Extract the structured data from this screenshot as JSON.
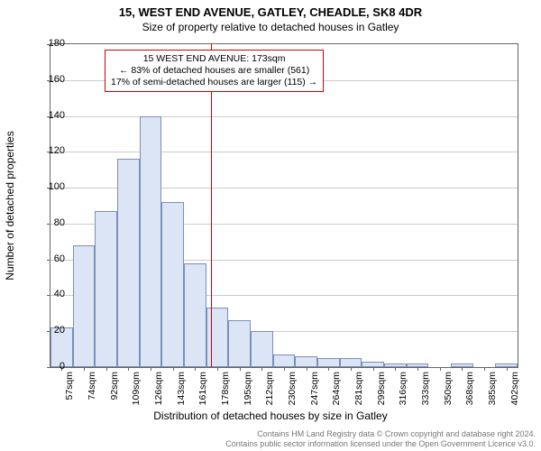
{
  "title": "15, WEST END AVENUE, GATLEY, CHEADLE, SK8 4DR",
  "subtitle": "Size of property relative to detached houses in Gatley",
  "chart": {
    "type": "histogram",
    "ylabel": "Number of detached properties",
    "xlabel": "Distribution of detached houses by size in Gatley",
    "ylim": [
      0,
      180
    ],
    "yticks": [
      0,
      20,
      40,
      60,
      80,
      100,
      120,
      140,
      160,
      180
    ],
    "xtick_labels": [
      "57sqm",
      "74sqm",
      "92sqm",
      "109sqm",
      "126sqm",
      "143sqm",
      "161sqm",
      "178sqm",
      "195sqm",
      "212sqm",
      "230sqm",
      "247sqm",
      "264sqm",
      "281sqm",
      "299sqm",
      "316sqm",
      "333sqm",
      "350sqm",
      "368sqm",
      "385sqm",
      "402sqm"
    ],
    "values": [
      22,
      68,
      87,
      116,
      140,
      92,
      58,
      33,
      26,
      20,
      7,
      6,
      5,
      5,
      3,
      2,
      2,
      0,
      2,
      0,
      2
    ],
    "bar_fill": "#dbe5f5",
    "bar_border": "#7a8fb8",
    "grid_color": "#cccccc",
    "background": "#ffffff",
    "reference_line": {
      "value_sqm": 173,
      "x_min_sqm": 48,
      "x_max_sqm": 411,
      "color": "#cc0000"
    },
    "annotation": {
      "line1": "15 WEST END AVENUE: 173sqm",
      "line2": "← 83% of detached houses are smaller (561)",
      "line3": "17% of semi-detached houses are larger (115) →",
      "border_color": "#cc0000"
    }
  },
  "footer": {
    "line1": "Contains HM Land Registry data © Crown copyright and database right 2024.",
    "line2": "Contains public sector information licensed under the Open Government Licence v3.0."
  }
}
